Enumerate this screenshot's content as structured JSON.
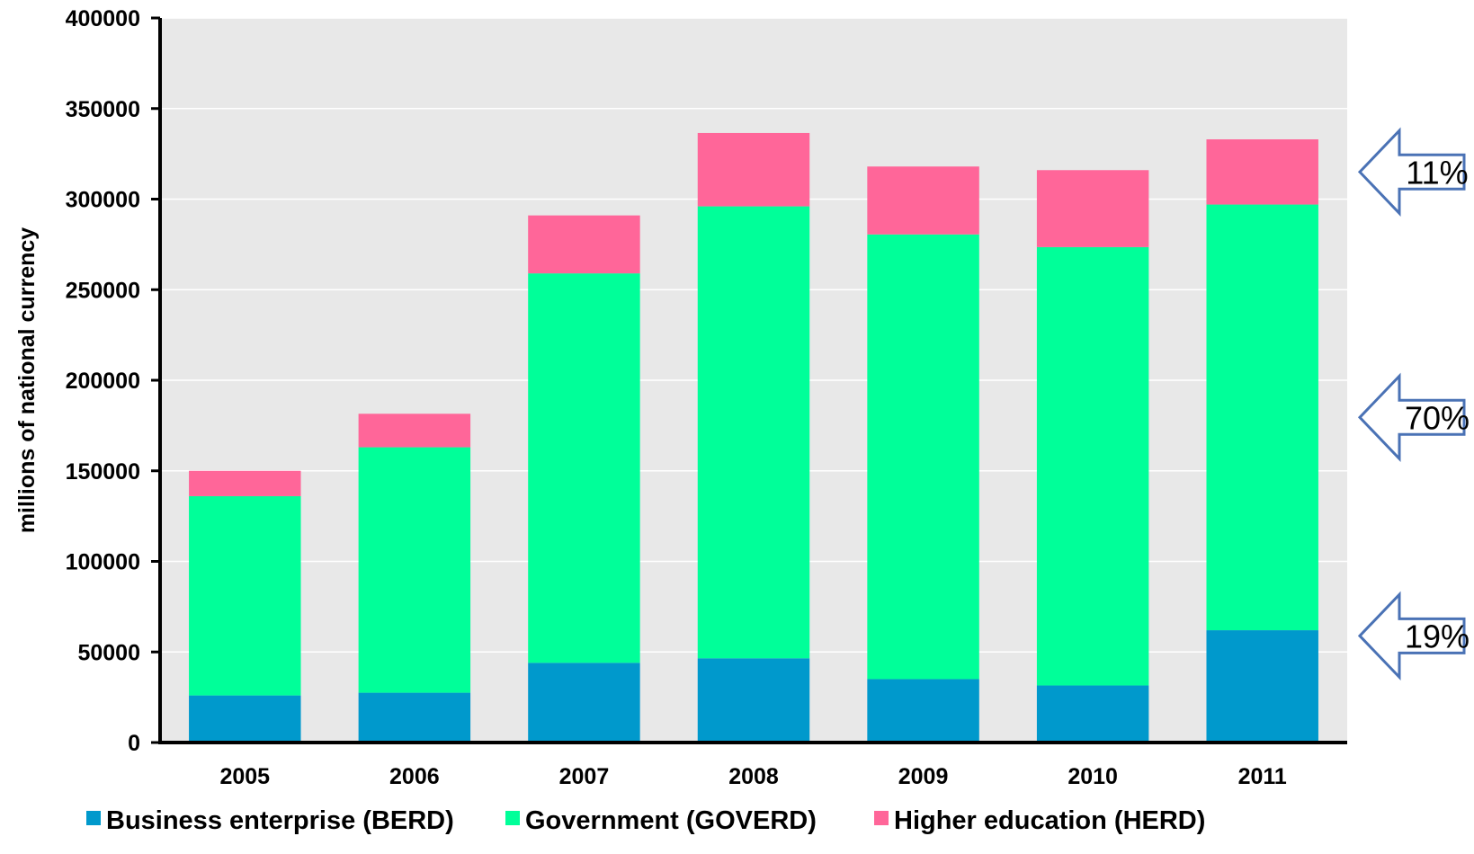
{
  "chart_data": {
    "type": "bar",
    "stacked": true,
    "categories": [
      "2005",
      "2006",
      "2007",
      "2008",
      "2009",
      "2010",
      "2011"
    ],
    "series": [
      {
        "name": "Business enterprise (BERD)",
        "color": "#0099cc",
        "values": [
          26000,
          27500,
          44000,
          46500,
          35000,
          31500,
          62000
        ]
      },
      {
        "name": "Government (GOVERD)",
        "color": "#00ff99",
        "values": [
          110000,
          135500,
          215000,
          249500,
          245500,
          242000,
          235000
        ]
      },
      {
        "name": "Higher education (HERD)",
        "color": "#ff6699",
        "values": [
          14000,
          18500,
          32000,
          40500,
          37500,
          42500,
          36000
        ]
      }
    ],
    "title": "",
    "xlabel": "",
    "ylabel": "millions of national currency",
    "ylim": [
      0,
      400000
    ],
    "yticks": [
      "0",
      "50000",
      "100000",
      "150000",
      "200000",
      "250000",
      "300000",
      "350000",
      "400000"
    ],
    "grid": true,
    "legend_position": "bottom",
    "plot_background": "#e8e8e8",
    "annotations": [
      {
        "text": "11%",
        "series": "Higher education (HERD)"
      },
      {
        "text": "70%",
        "series": "Government (GOVERD)"
      },
      {
        "text": "19%",
        "series": "Business enterprise (BERD)"
      }
    ]
  }
}
